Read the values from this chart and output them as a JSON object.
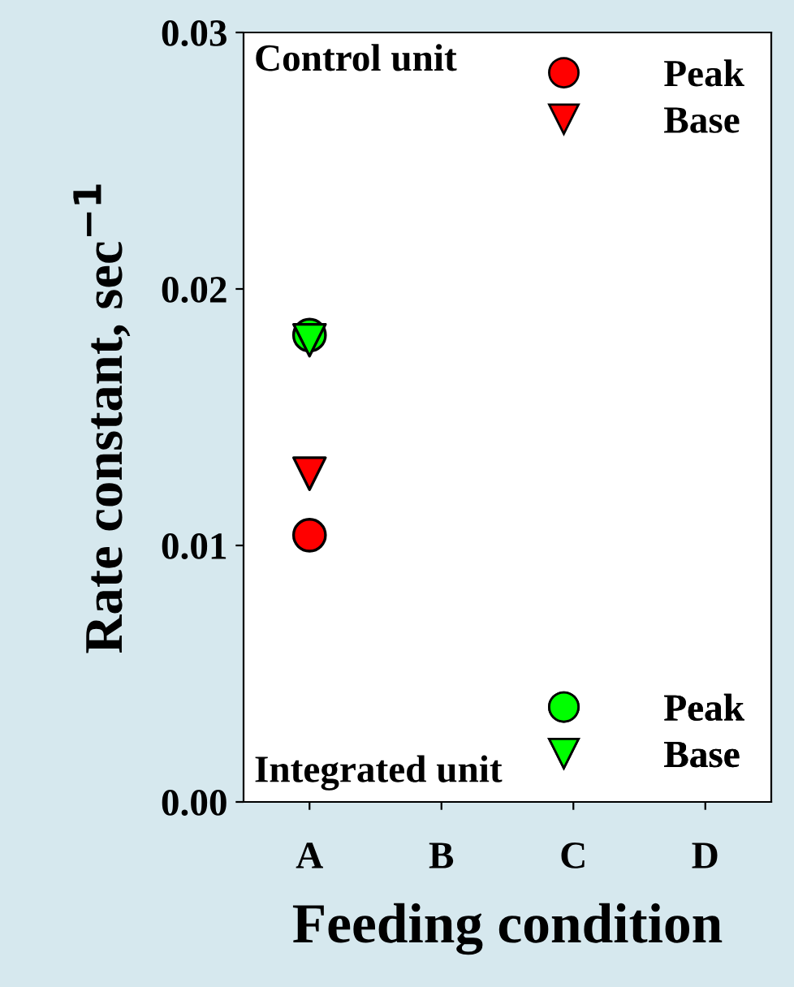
{
  "chart_data": {
    "type": "scatter",
    "xlabel": "Feeding condition",
    "ylabel": "Rate constant, sec$^{−1}$",
    "categories": [
      "A",
      "B",
      "C",
      "D"
    ],
    "ylim": [
      0,
      0.03
    ],
    "yticks": [
      {
        "value": 0,
        "label": "0.00"
      },
      {
        "value": 0.01,
        "label": "0.01"
      },
      {
        "value": 0.02,
        "label": "0.02"
      },
      {
        "value": 0.03,
        "label": "0.03"
      }
    ],
    "grid": false,
    "legend": [
      "top right",
      "bottom right"
    ],
    "legend_title": [
      "Control unit",
      "Integrated unit"
    ],
    "series": [
      {
        "name": "Peak",
        "color": "#ff0000",
        "marker": "circle",
        "values": [
          0.0104,
          null,
          null,
          null
        ]
      },
      {
        "name": "Base",
        "color": "#ff0000",
        "marker": "triangle",
        "values": [
          0.0128,
          null,
          null,
          null
        ]
      },
      {
        "name": "Peak",
        "color": "#00ff00",
        "marker": "circle",
        "values": [
          0.0182,
          null,
          null,
          null
        ]
      },
      {
        "name": "Base",
        "color": "#00ff00",
        "marker": "triangle",
        "values": [
          0.018,
          null,
          null,
          null
        ]
      }
    ]
  }
}
